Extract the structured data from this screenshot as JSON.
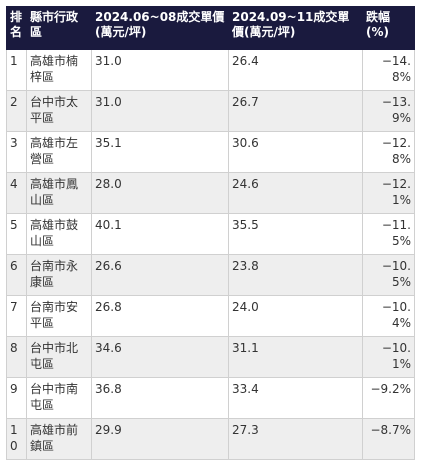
{
  "table": {
    "headers": {
      "rank": "排名",
      "district": "縣市行政區",
      "period1": "2024.06~08成交單價(萬元/坪)",
      "period2": "2024.09~11成交單價(萬元/坪)",
      "change": "跌幅(%)"
    },
    "rows": [
      {
        "rank": "1",
        "district": "高雄市楠梓區",
        "period1": "31.0",
        "period2": "26.4",
        "change": "−14.8%"
      },
      {
        "rank": "2",
        "district": "台中市太平區",
        "period1": "31.0",
        "period2": "26.7",
        "change": "−13.9%"
      },
      {
        "rank": "3",
        "district": "高雄市左營區",
        "period1": "35.1",
        "period2": "30.6",
        "change": "−12.8%"
      },
      {
        "rank": "4",
        "district": "高雄市鳳山區",
        "period1": "28.0",
        "period2": "24.6",
        "change": "−12.1%"
      },
      {
        "rank": "5",
        "district": "高雄市鼓山區",
        "period1": "40.1",
        "period2": "35.5",
        "change": "−11.5%"
      },
      {
        "rank": "6",
        "district": "台南市永康區",
        "period1": "26.6",
        "period2": "23.8",
        "change": "−10.5%"
      },
      {
        "rank": "7",
        "district": "台南市安平區",
        "period1": "26.8",
        "period2": "24.0",
        "change": "−10.4%"
      },
      {
        "rank": "8",
        "district": "台中市北屯區",
        "period1": "34.6",
        "period2": "31.1",
        "change": "−10.1%"
      },
      {
        "rank": "9",
        "district": "台中市南屯區",
        "period1": "36.8",
        "period2": "33.4",
        "change": "−9.2%"
      },
      {
        "rank": "10",
        "district": "高雄市前鎮區",
        "period1": "29.9",
        "period2": "27.3",
        "change": "−8.7%"
      }
    ]
  },
  "colors": {
    "header_bg": "#1a1a3e",
    "header_text": "#ffffff",
    "row_alt_bg": "#eeeeee"
  }
}
